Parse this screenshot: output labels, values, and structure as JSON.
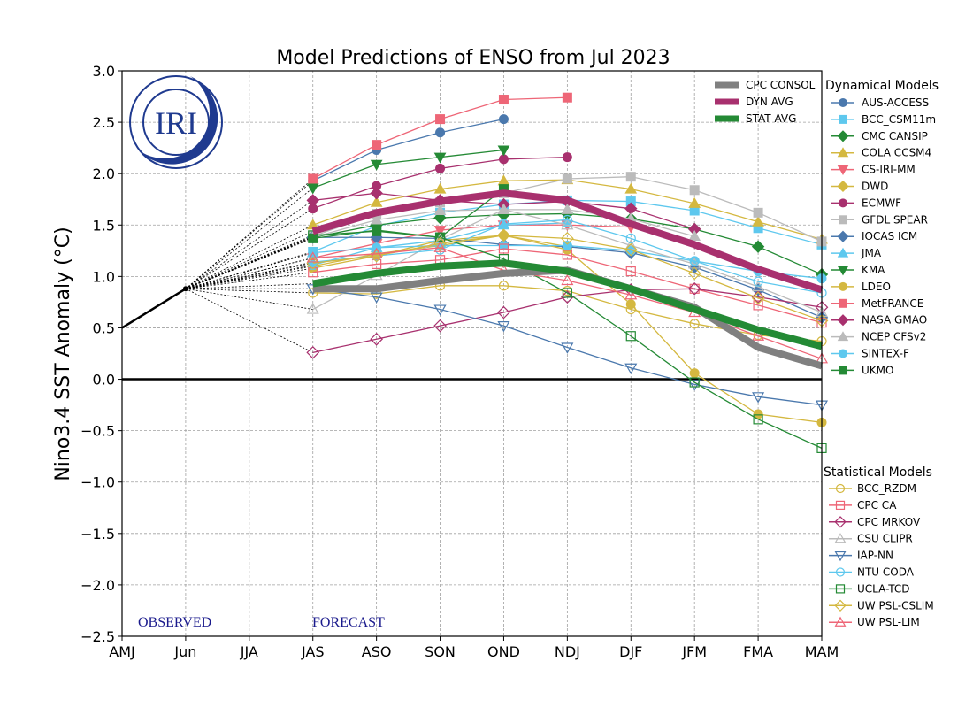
{
  "chart_data": {
    "type": "line",
    "title": "Model Predictions of ENSO from Jul 2023",
    "ylabel": "Nino3.4 SST Anomaly (°C)",
    "xlabel": "",
    "categories": [
      "AMJ",
      "Jun",
      "JJA",
      "JAS",
      "ASO",
      "SON",
      "OND",
      "NDJ",
      "DJF",
      "JFM",
      "FMA",
      "MAM"
    ],
    "ylim": [
      -2.5,
      3.0
    ],
    "yticks": [
      3.0,
      2.5,
      2.0,
      1.5,
      1.0,
      0.5,
      0.0,
      -0.5,
      -1.0,
      -1.5,
      -2.0,
      -2.5
    ],
    "ytick_labels": [
      "3.0",
      "2.5",
      "2.0",
      "1.5",
      "1.0",
      "0.5",
      "0.0",
      "−0.5",
      "−1.0",
      "−1.5",
      "−2.0",
      "−2.5"
    ],
    "grid": true,
    "annotations": {
      "observed": "OBSERVED",
      "forecast": "FORECAST",
      "logo": "IRI"
    },
    "observed": {
      "x": [
        "AMJ",
        "Jun"
      ],
      "values": [
        0.5,
        0.88
      ],
      "color": "#000000"
    },
    "forecast_start_index": 3,
    "averages": [
      {
        "name": "CPC CONSOL",
        "color": "#808080",
        "values": [
          0.88,
          0.88,
          0.96,
          1.03,
          1.06,
          0.88,
          0.7,
          0.31,
          0.13
        ]
      },
      {
        "name": "DYN AVG",
        "color": "#a8306e",
        "values": [
          1.44,
          1.62,
          1.73,
          1.81,
          1.74,
          1.51,
          1.31,
          1.07,
          0.87
        ]
      },
      {
        "name": "STAT AVG",
        "color": "#248a35",
        "values": [
          0.93,
          1.03,
          1.1,
          1.13,
          1.05,
          0.88,
          0.68,
          0.48,
          0.32
        ]
      }
    ],
    "legend_averages_position": "top-right inside plot",
    "dynamical_header": "Dynamical Models",
    "statistical_header": "Statistical Models",
    "dynamical": [
      {
        "name": "AUS-ACCESS",
        "color": "#4a78ad",
        "marker": "circle",
        "filled": true,
        "values": [
          1.93,
          2.23,
          2.4,
          2.53,
          null,
          null,
          null,
          null,
          null
        ]
      },
      {
        "name": "BCC_CSM11m",
        "color": "#5ec8ee",
        "marker": "square",
        "filled": true,
        "values": [
          1.24,
          1.49,
          1.62,
          1.7,
          1.74,
          1.73,
          1.64,
          1.47,
          1.31
        ]
      },
      {
        "name": "CMC CANSIP",
        "color": "#248a35",
        "marker": "diamond",
        "filled": true,
        "values": [
          1.38,
          1.5,
          1.57,
          1.6,
          1.61,
          1.56,
          1.46,
          1.29,
          1.02
        ]
      },
      {
        "name": "COLA CCSM4",
        "color": "#d4b840",
        "marker": "triangle-up",
        "filled": true,
        "values": [
          1.5,
          1.72,
          1.85,
          1.93,
          1.94,
          1.85,
          1.71,
          1.53,
          1.36
        ]
      },
      {
        "name": "CS-IRI-MM",
        "color": "#ee6677",
        "marker": "triangle-down",
        "filled": true,
        "values": [
          1.18,
          1.32,
          1.45,
          1.5,
          1.5,
          1.48,
          null,
          null,
          null
        ]
      },
      {
        "name": "DWD",
        "color": "#d4b840",
        "marker": "diamond",
        "filled": true,
        "values": [
          1.1,
          1.22,
          1.3,
          1.4,
          1.29,
          null,
          null,
          null,
          null
        ]
      },
      {
        "name": "ECMWF",
        "color": "#a8306e",
        "marker": "circle",
        "filled": true,
        "values": [
          1.66,
          1.88,
          2.05,
          2.14,
          2.16,
          null,
          null,
          null,
          null
        ]
      },
      {
        "name": "GFDL SPEAR",
        "color": "#bbbbbb",
        "marker": "square",
        "filled": true,
        "values": [
          1.39,
          1.61,
          1.72,
          1.81,
          1.95,
          1.97,
          1.84,
          1.62,
          1.34
        ]
      },
      {
        "name": "IOCAS ICM",
        "color": "#4a78ad",
        "marker": "diamond",
        "filled": true,
        "values": [
          1.38,
          1.38,
          1.37,
          1.31,
          1.29,
          1.23,
          1.09,
          0.87,
          0.6
        ]
      },
      {
        "name": "JMA",
        "color": "#5ec8ee",
        "marker": "triangle-up",
        "filled": true,
        "values": [
          1.23,
          1.28,
          1.35,
          1.5,
          1.52,
          null,
          null,
          null,
          null
        ]
      },
      {
        "name": "KMA",
        "color": "#248a35",
        "marker": "triangle-down",
        "filled": true,
        "values": [
          1.86,
          2.09,
          2.16,
          2.23,
          null,
          null,
          null,
          null,
          null
        ]
      },
      {
        "name": "LDEO",
        "color": "#d4b840",
        "marker": "circle",
        "filled": true,
        "values": [
          1.08,
          1.2,
          1.35,
          1.4,
          1.26,
          0.73,
          0.06,
          -0.34,
          -0.42
        ]
      },
      {
        "name": "MetFRANCE",
        "color": "#ee6677",
        "marker": "square",
        "filled": true,
        "values": [
          1.95,
          2.28,
          2.53,
          2.72,
          2.74,
          null,
          null,
          null,
          null
        ]
      },
      {
        "name": "NASA GMAO",
        "color": "#a8306e",
        "marker": "diamond",
        "filled": true,
        "values": [
          1.74,
          1.81,
          1.74,
          1.7,
          1.73,
          1.66,
          1.46,
          null,
          null
        ]
      },
      {
        "name": "NCEP CFSv2",
        "color": "#bbbbbb",
        "marker": "triangle-up",
        "filled": true,
        "values": [
          1.38,
          1.55,
          1.64,
          1.65,
          1.65,
          1.56,
          1.39,
          null,
          null
        ]
      },
      {
        "name": "SINTEX-F",
        "color": "#5ec8ee",
        "marker": "circle",
        "filled": true,
        "values": [
          1.11,
          1.28,
          1.3,
          1.3,
          1.3,
          1.25,
          1.15,
          1.05,
          0.98
        ]
      },
      {
        "name": "UKMO",
        "color": "#248a35",
        "marker": "square",
        "filled": true,
        "values": [
          1.37,
          1.45,
          1.38,
          1.85,
          null,
          null,
          null,
          null,
          null
        ]
      }
    ],
    "statistical": [
      {
        "name": "BCC_RZDM",
        "color": "#d4b840",
        "marker": "circle",
        "filled": false,
        "values": [
          0.84,
          0.83,
          0.91,
          0.91,
          0.86,
          0.68,
          0.54,
          0.43,
          0.37
        ]
      },
      {
        "name": "CPC CA",
        "color": "#ee6677",
        "marker": "square",
        "filled": false,
        "values": [
          1.04,
          1.12,
          1.16,
          1.27,
          1.21,
          1.05,
          0.88,
          0.72,
          0.55
        ]
      },
      {
        "name": "CPC MRKOV",
        "color": "#a8306e",
        "marker": "diamond",
        "filled": false,
        "values": [
          0.26,
          0.39,
          0.52,
          0.65,
          0.8,
          0.87,
          0.88,
          0.8,
          0.7
        ]
      },
      {
        "name": "CSU CLIPR",
        "color": "#bbbbbb",
        "marker": "triangle-up",
        "filled": false,
        "values": [
          0.68,
          1.01,
          1.36,
          1.65,
          1.5,
          1.3,
          1.12,
          0.9,
          0.65
        ]
      },
      {
        "name": "IAP-NN",
        "color": "#4a78ad",
        "marker": "triangle-down",
        "filled": false,
        "values": [
          0.88,
          0.8,
          0.68,
          0.52,
          0.31,
          0.11,
          -0.05,
          -0.17,
          -0.25
        ]
      },
      {
        "name": "NTU CODA",
        "color": "#5ec8ee",
        "marker": "circle",
        "filled": false,
        "values": [
          1.14,
          1.2,
          1.26,
          1.51,
          1.55,
          1.37,
          1.15,
          0.95,
          0.84
        ]
      },
      {
        "name": "UCLA-TCD",
        "color": "#248a35",
        "marker": "square",
        "filled": false,
        "values": [
          1.4,
          1.44,
          1.38,
          1.17,
          0.84,
          0.42,
          -0.03,
          -0.39,
          -0.67
        ]
      },
      {
        "name": "UW PSL-CSLIM",
        "color": "#d4b840",
        "marker": "diamond",
        "filled": false,
        "values": [
          1.13,
          1.2,
          1.32,
          1.4,
          1.37,
          1.26,
          1.03,
          0.79,
          0.57
        ]
      },
      {
        "name": "UW PSL-LIM",
        "color": "#ee6677",
        "marker": "triangle-up",
        "filled": false,
        "values": [
          1.18,
          1.22,
          1.28,
          1.06,
          0.96,
          0.82,
          0.65,
          0.42,
          0.2
        ]
      }
    ]
  }
}
